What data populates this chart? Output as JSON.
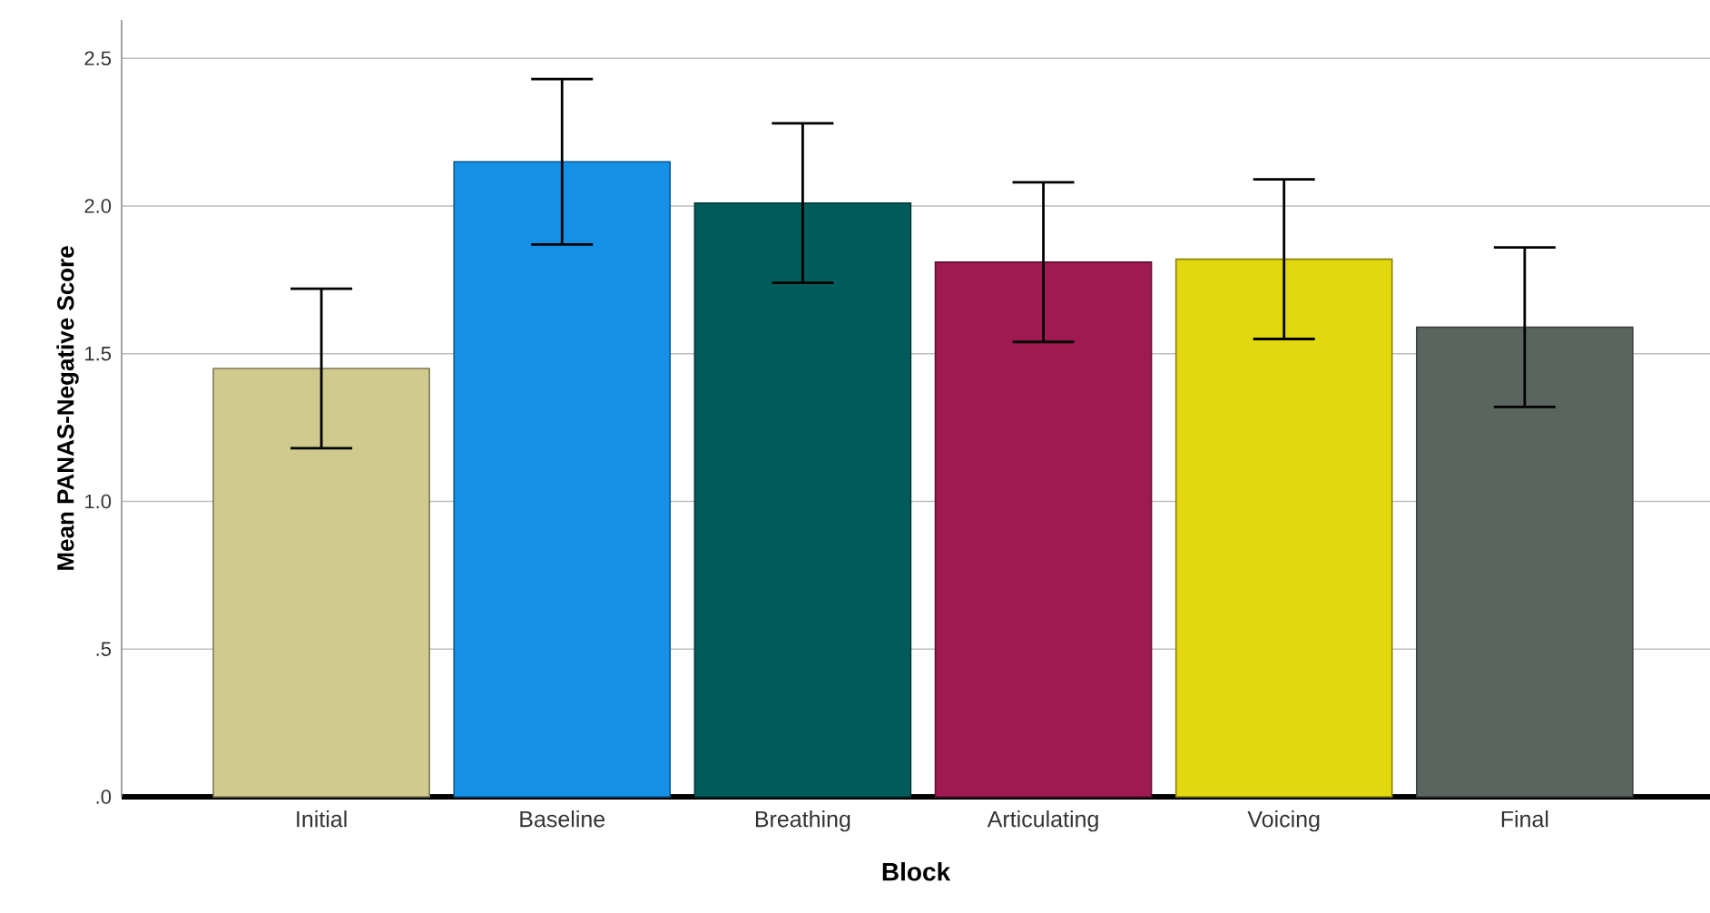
{
  "chart_data": {
    "type": "bar",
    "xlabel": "Block",
    "ylabel": "Mean PANAS-Negative Score",
    "categories": [
      "Initial",
      "Baseline",
      "Breathing",
      "Articulating",
      "Voicing",
      "Final"
    ],
    "values": [
      1.45,
      2.15,
      2.01,
      1.81,
      1.82,
      1.59
    ],
    "errors": [
      0.27,
      0.28,
      0.27,
      0.27,
      0.27,
      0.27
    ],
    "colors": [
      "#d0ca8f",
      "#1491e6",
      "#005c5a",
      "#a01a52",
      "#e2d810",
      "#5b6560"
    ],
    "ylim": [
      0,
      2.63
    ],
    "yticks": [
      {
        "value": 0,
        "label": ".0"
      },
      {
        "value": 0.5,
        "label": ".5"
      },
      {
        "value": 1.0,
        "label": "1.0"
      },
      {
        "value": 1.5,
        "label": "1.5"
      },
      {
        "value": 2.0,
        "label": "2.0"
      },
      {
        "value": 2.5,
        "label": "2.5"
      }
    ],
    "grid": "y"
  }
}
